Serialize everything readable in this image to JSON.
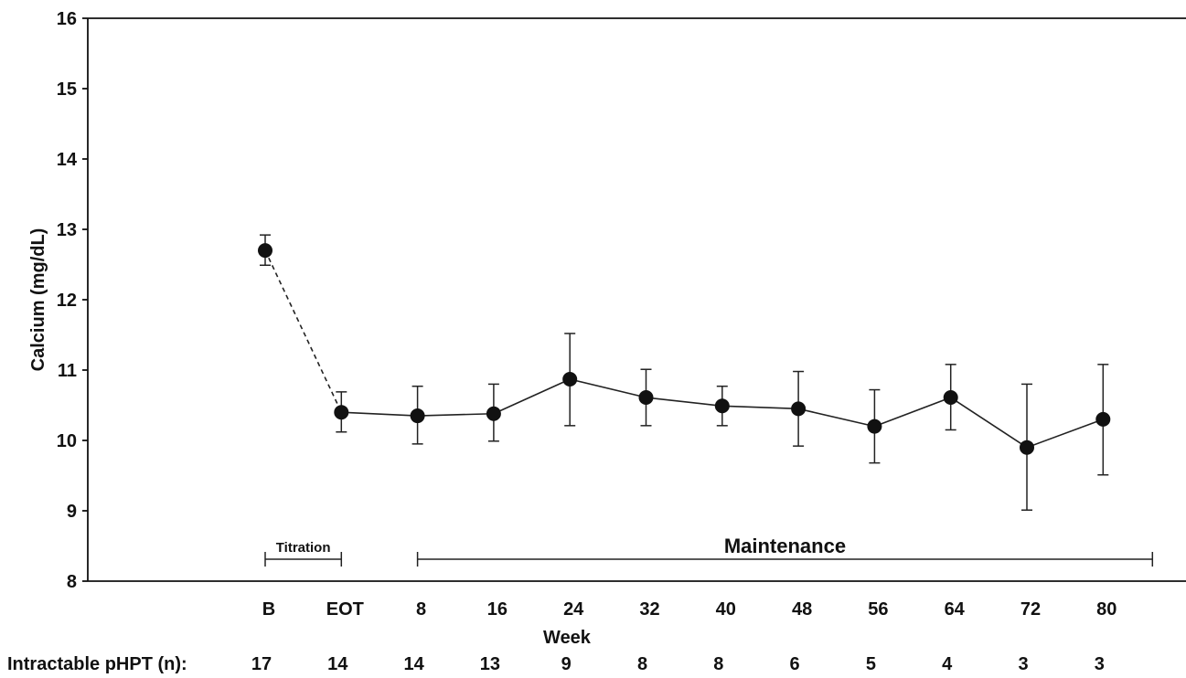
{
  "chart_data": {
    "type": "line",
    "ylabel": "Calcium (mg/dL)",
    "xlabel": "Week",
    "ylim": [
      8,
      16
    ],
    "yticks": [
      8,
      9,
      10,
      11,
      12,
      13,
      14,
      15,
      16
    ],
    "categories": [
      "B",
      "EOT",
      "8",
      "16",
      "24",
      "32",
      "40",
      "48",
      "56",
      "64",
      "72",
      "80"
    ],
    "values": [
      12.7,
      10.4,
      10.35,
      10.38,
      10.87,
      10.61,
      10.49,
      10.45,
      10.2,
      10.61,
      9.9,
      10.3
    ],
    "error_low": [
      12.49,
      10.12,
      9.95,
      9.99,
      10.21,
      10.21,
      10.21,
      9.92,
      9.68,
      10.15,
      9.01,
      9.51
    ],
    "error_high": [
      12.92,
      10.69,
      10.77,
      10.8,
      11.52,
      11.01,
      10.77,
      10.98,
      10.72,
      11.08,
      10.8,
      11.08
    ],
    "line_styles": [
      "dashed",
      "solid",
      "solid",
      "solid",
      "solid",
      "solid",
      "solid",
      "solid",
      "solid",
      "solid",
      "solid"
    ],
    "phases": [
      {
        "label": "Titration",
        "from": "B",
        "to": "EOT"
      },
      {
        "label": "Maintenance",
        "from": "8",
        "to": "80",
        "extends_past_last": true
      }
    ],
    "n_row": {
      "label": "Intractable pHPT (n):",
      "values": [
        "17",
        "14",
        "14",
        "13",
        "9",
        "8",
        "8",
        "6",
        "5",
        "4",
        "3",
        "3"
      ]
    },
    "grid": false,
    "legend": "none"
  }
}
